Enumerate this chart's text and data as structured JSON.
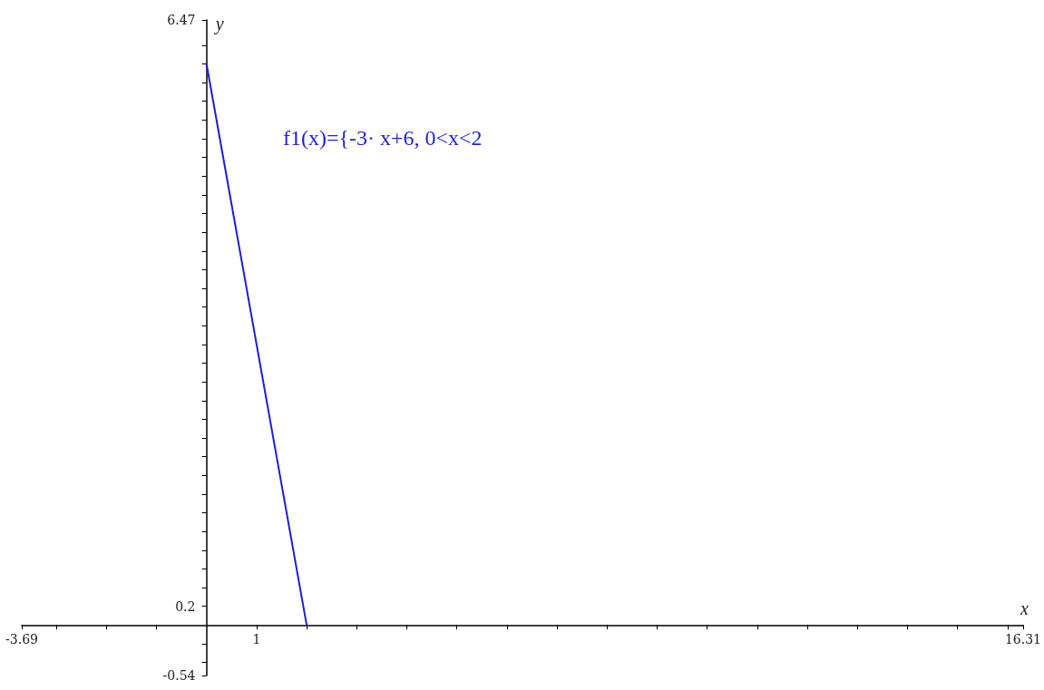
{
  "chart_data": {
    "type": "line",
    "xlabel": "x",
    "ylabel": "y",
    "x": [
      0,
      2
    ],
    "series": [
      {
        "color": "#1f1fd0",
        "values": [
          6,
          0
        ]
      }
    ],
    "xlim": [
      -3.69,
      16.31
    ],
    "xticks": [
      {
        "value": -3.69,
        "label": "-3.69"
      },
      {
        "value": -3,
        "label": null
      },
      {
        "value": -2,
        "label": null
      },
      {
        "value": -1,
        "label": null
      },
      1,
      {
        "value": 2,
        "label": null
      },
      {
        "value": 3,
        "label": null
      },
      {
        "value": 4,
        "label": null
      },
      {
        "value": 5,
        "label": null
      },
      {
        "value": 6,
        "label": null
      },
      {
        "value": 7,
        "label": null
      },
      {
        "value": 8,
        "label": null
      },
      {
        "value": 9,
        "label": null
      },
      {
        "value": 10,
        "label": null
      },
      {
        "value": 11,
        "label": null
      },
      {
        "value": 12,
        "label": null
      },
      {
        "value": 13,
        "label": null
      },
      {
        "value": 14,
        "label": null
      },
      {
        "value": 15,
        "label": null
      },
      {
        "value": 16,
        "label": null
      },
      {
        "value": 16.31,
        "label": "16.31"
      }
    ],
    "ylim": [
      -0.54,
      6.47
    ],
    "yticks": [
      {
        "value": -0.54,
        "label": "-0.54"
      },
      {
        "value": -0.4,
        "label": null
      },
      {
        "value": -0.2,
        "label": null
      },
      0.2,
      {
        "value": 0.4,
        "label": null
      },
      {
        "value": 0.6,
        "label": null
      },
      {
        "value": 0.8,
        "label": null
      },
      {
        "value": 1,
        "label": null
      },
      {
        "value": 1.2,
        "label": null
      },
      {
        "value": 1.4,
        "label": null
      },
      {
        "value": 1.6,
        "label": null
      },
      {
        "value": 1.8,
        "label": null
      },
      {
        "value": 2,
        "label": null
      },
      {
        "value": 2.2,
        "label": null
      },
      {
        "value": 2.4,
        "label": null
      },
      {
        "value": 2.6,
        "label": null
      },
      {
        "value": 2.8,
        "label": null
      },
      {
        "value": 3,
        "label": null
      },
      {
        "value": 3.2,
        "label": null
      },
      {
        "value": 3.4,
        "label": null
      },
      {
        "value": 3.6,
        "label": null
      },
      {
        "value": 3.8,
        "label": null
      },
      {
        "value": 4,
        "label": null
      },
      {
        "value": 4.2,
        "label": null
      },
      {
        "value": 4.4,
        "label": null
      },
      {
        "value": 4.6,
        "label": null
      },
      {
        "value": 4.8,
        "label": null
      },
      {
        "value": 5,
        "label": null
      },
      {
        "value": 5.2,
        "label": null
      },
      {
        "value": 5.4,
        "label": null
      },
      {
        "value": 5.6,
        "label": null
      },
      {
        "value": 5.8,
        "label": null
      },
      {
        "value": 6,
        "label": null
      },
      {
        "value": 6.2,
        "label": null
      },
      {
        "value": 6.47,
        "label": "6.47"
      }
    ],
    "annotations": [
      "f1(x)={-3· x+6, 0<x<2"
    ],
    "grid": false,
    "marker": "none",
    "line_style": "solid"
  }
}
